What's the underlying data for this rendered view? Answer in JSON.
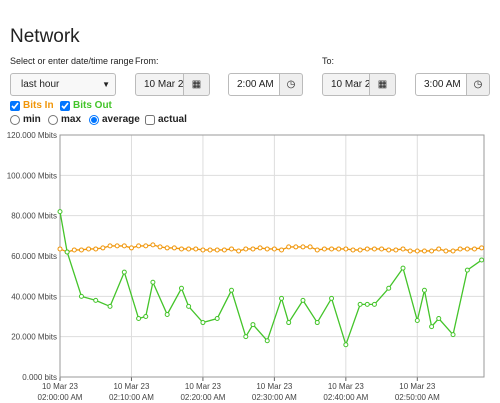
{
  "header": {
    "title": "Network"
  },
  "controls": {
    "range_label": "Select or enter date/time range",
    "range_select": "last hour",
    "from_label": "From:",
    "from_date": "10 Mar 2",
    "from_time": "2:00 AM",
    "to_label": "To:",
    "to_date": "10 Mar 2",
    "to_time": "3:00 AM",
    "options": [
      "min",
      "max",
      "average"
    ],
    "selected_option": "average",
    "actual_label": "actual"
  },
  "chart_data": {
    "type": "line",
    "xlim": [
      "02:00:00 AM",
      "02:59:20 AM"
    ],
    "xticks": [
      {
        "date": "10 Mar 23",
        "time": "02:00:00 AM"
      },
      {
        "date": "10 Mar 23",
        "time": "02:10:00 AM"
      },
      {
        "date": "10 Mar 23",
        "time": "02:20:00 AM"
      },
      {
        "date": "10 Mar 23",
        "time": "02:30:00 AM"
      },
      {
        "date": "10 Mar 23",
        "time": "02:40:00 AM"
      },
      {
        "date": "10 Mar 23",
        "time": "02:50:00 AM"
      }
    ],
    "ylim": [
      0,
      120
    ],
    "yticks": [
      {
        "value": 0,
        "label": "0.000 bits"
      },
      {
        "value": 20,
        "label": "20.000 Mbits"
      },
      {
        "value": 40,
        "label": "40.000 Mbits"
      },
      {
        "value": 60,
        "label": "60.000 Mbits"
      },
      {
        "value": 80,
        "label": "80.000 Mbits"
      },
      {
        "value": 100,
        "label": "100.000 Mbits"
      },
      {
        "value": 120,
        "label": "120.000 Mbits"
      }
    ],
    "grid": true,
    "series": [
      {
        "name": "Bits In",
        "color": "#f0960a",
        "x": [
          "02:00:00 AM",
          "02:01:00 AM",
          "02:02:00 AM",
          "02:03:00 AM",
          "02:04:00 AM",
          "02:05:00 AM",
          "02:06:00 AM",
          "02:07:00 AM",
          "02:08:00 AM",
          "02:09:00 AM",
          "02:10:00 AM",
          "02:11:00 AM",
          "02:12:00 AM",
          "02:13:00 AM",
          "02:14:00 AM",
          "02:15:00 AM",
          "02:16:00 AM",
          "02:17:00 AM",
          "02:18:00 AM",
          "02:19:00 AM",
          "02:20:00 AM",
          "02:21:00 AM",
          "02:22:00 AM",
          "02:23:00 AM",
          "02:24:00 AM",
          "02:25:00 AM",
          "02:26:00 AM",
          "02:27:00 AM",
          "02:28:00 AM",
          "02:29:00 AM",
          "02:30:00 AM",
          "02:31:00 AM",
          "02:32:00 AM",
          "02:33:00 AM",
          "02:34:00 AM",
          "02:35:00 AM",
          "02:36:00 AM",
          "02:37:00 AM",
          "02:38:00 AM",
          "02:39:00 AM",
          "02:40:00 AM",
          "02:41:00 AM",
          "02:42:00 AM",
          "02:43:00 AM",
          "02:44:00 AM",
          "02:45:00 AM",
          "02:46:00 AM",
          "02:47:00 AM",
          "02:48:00 AM",
          "02:49:00 AM",
          "02:50:00 AM",
          "02:51:00 AM",
          "02:52:00 AM",
          "02:53:00 AM",
          "02:54:00 AM",
          "02:55:00 AM",
          "02:56:00 AM",
          "02:57:00 AM",
          "02:58:00 AM",
          "02:59:00 AM"
        ],
        "values": [
          63.5,
          62,
          63,
          63,
          63.5,
          63.5,
          64,
          65,
          65,
          65,
          64,
          65,
          65,
          65.5,
          64.5,
          64,
          64,
          63.5,
          63.5,
          63.5,
          63,
          63,
          63,
          63,
          63.5,
          62.5,
          63.5,
          63.5,
          64,
          63.5,
          63.5,
          63,
          64.5,
          64.5,
          64.5,
          64.5,
          63,
          63.5,
          63.5,
          63.5,
          63.5,
          63,
          63,
          63.5,
          63.5,
          63.5,
          63,
          63,
          63.5,
          62.5,
          62.5,
          62.5,
          62.5,
          63.5,
          62.5,
          62.5,
          63.5,
          63.5,
          63.5,
          64
        ]
      },
      {
        "name": "Bits Out",
        "color": "#44c42a",
        "x": [
          "02:00:00 AM",
          "02:01:00 AM",
          "02:03:00 AM",
          "02:05:00 AM",
          "02:07:00 AM",
          "02:09:00 AM",
          "02:11:00 AM",
          "02:12:00 AM",
          "02:13:00 AM",
          "02:15:00 AM",
          "02:17:00 AM",
          "02:18:00 AM",
          "02:20:00 AM",
          "02:22:00 AM",
          "02:24:00 AM",
          "02:26:00 AM",
          "02:27:00 AM",
          "02:29:00 AM",
          "02:31:00 AM",
          "02:32:00 AM",
          "02:34:00 AM",
          "02:36:00 AM",
          "02:38:00 AM",
          "02:40:00 AM",
          "02:42:00 AM",
          "02:43:00 AM",
          "02:44:00 AM",
          "02:46:00 AM",
          "02:48:00 AM",
          "02:50:00 AM",
          "02:51:00 AM",
          "02:52:00 AM",
          "02:53:00 AM",
          "02:55:00 AM",
          "02:57:00 AM",
          "02:59:00 AM"
        ],
        "values": [
          82,
          62,
          40,
          38,
          35,
          52,
          29,
          30,
          47,
          31,
          44,
          35,
          27,
          29,
          43,
          20,
          26,
          18,
          39,
          27,
          38,
          27,
          39,
          16,
          36,
          36,
          36,
          44,
          54,
          28,
          43,
          25,
          29,
          21,
          53,
          58
        ]
      }
    ]
  }
}
